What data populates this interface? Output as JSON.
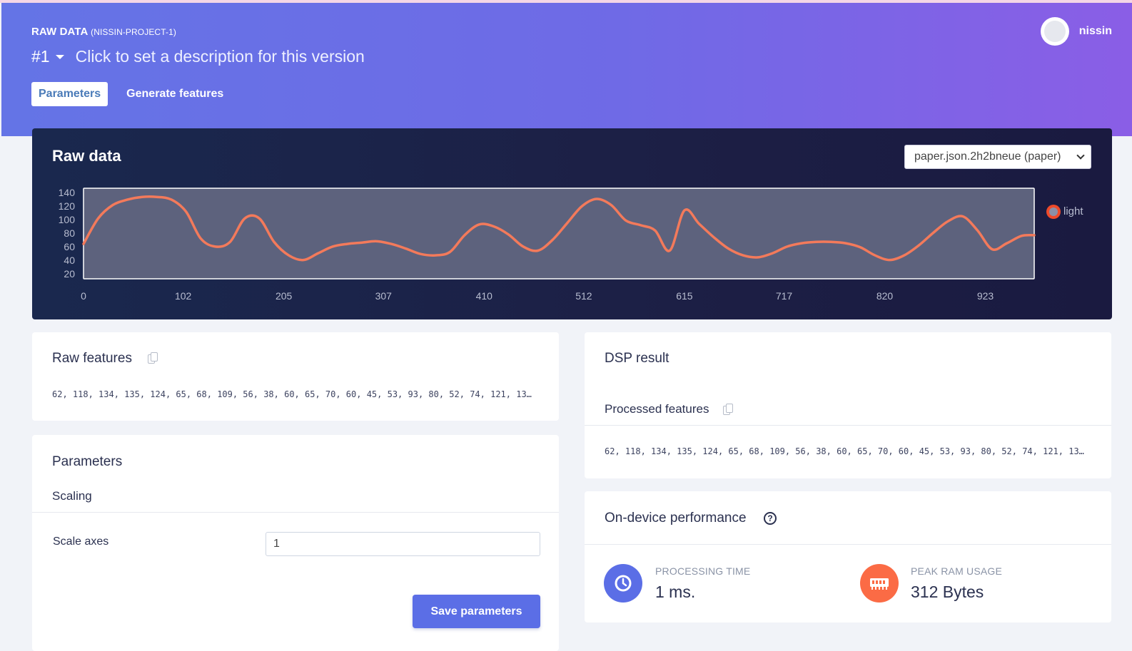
{
  "header": {
    "title": "RAW DATA",
    "project": "(NISSIN-PROJECT-1)",
    "version": "#1",
    "version_description": "Click to set a description for this version",
    "user_name": "nissin",
    "tabs": [
      {
        "label": "Parameters",
        "active": true
      },
      {
        "label": "Generate features",
        "active": false
      }
    ]
  },
  "raw_data": {
    "title": "Raw data",
    "selected_sample": "paper.json.2h2bneue (paper)"
  },
  "chart_data": {
    "type": "line",
    "x_ticks": [
      "0",
      "102",
      "205",
      "307",
      "410",
      "512",
      "615",
      "717",
      "820",
      "923"
    ],
    "y_ticks": [
      "140",
      "120",
      "100",
      "80",
      "60",
      "40",
      "20"
    ],
    "ylim": [
      10,
      145
    ],
    "xlim": [
      0,
      973
    ],
    "legend": [
      {
        "name": "light",
        "color": "#f37a5b"
      }
    ],
    "line_color": "#f37a5b",
    "plot_bg": "#5d627d",
    "series": [
      {
        "name": "light",
        "x": [
          0,
          15,
          30,
          45,
          60,
          75,
          90,
          105,
          120,
          135,
          150,
          165,
          180,
          195,
          210,
          225,
          240,
          255,
          270,
          285,
          300,
          315,
          330,
          345,
          360,
          375,
          390,
          405,
          420,
          435,
          450,
          465,
          480,
          495,
          510,
          525,
          540,
          555,
          570,
          585,
          600,
          615,
          630,
          645,
          660,
          675,
          690,
          705,
          720,
          735,
          750,
          765,
          780,
          795,
          810,
          825,
          840,
          855,
          870,
          885,
          900,
          915,
          930,
          945,
          960,
          973
        ],
        "y": [
          62,
          100,
          120,
          128,
          132,
          132,
          128,
          110,
          70,
          58,
          65,
          100,
          100,
          65,
          45,
          38,
          48,
          58,
          62,
          64,
          66,
          62,
          55,
          47,
          45,
          50,
          75,
          91,
          88,
          76,
          58,
          52,
          68,
          93,
          118,
          129,
          120,
          97,
          90,
          82,
          52,
          112,
          92,
          72,
          55,
          45,
          42,
          48,
          58,
          63,
          65,
          65,
          63,
          57,
          45,
          38,
          45,
          60,
          79,
          96,
          103,
          82,
          54,
          63,
          74,
          75
        ]
      }
    ]
  },
  "raw_features": {
    "title": "Raw features",
    "values": "62, 118, 134, 135, 124, 65, 68, 109, 56, 38, 60, 65, 70, 60, 45, 53, 93, 80, 52, 74, 121, 13…"
  },
  "parameters": {
    "title": "Parameters",
    "section": "Scaling",
    "scale_axes_label": "Scale axes",
    "scale_axes_value": "1",
    "save_label": "Save parameters"
  },
  "dsp_result": {
    "title": "DSP result",
    "processed_title": "Processed features",
    "values": "62, 118, 134, 135, 124, 65, 68, 109, 56, 38, 60, 65, 70, 60, 45, 53, 93, 80, 52, 74, 121, 13…"
  },
  "performance": {
    "title": "On-device performance",
    "help": "?",
    "processing_label": "PROCESSING TIME",
    "processing_value": "1 ms.",
    "ram_label": "PEAK RAM USAGE",
    "ram_value": "312 Bytes",
    "processing_color": "#5b6ee6",
    "ram_color": "#fb6b45"
  }
}
